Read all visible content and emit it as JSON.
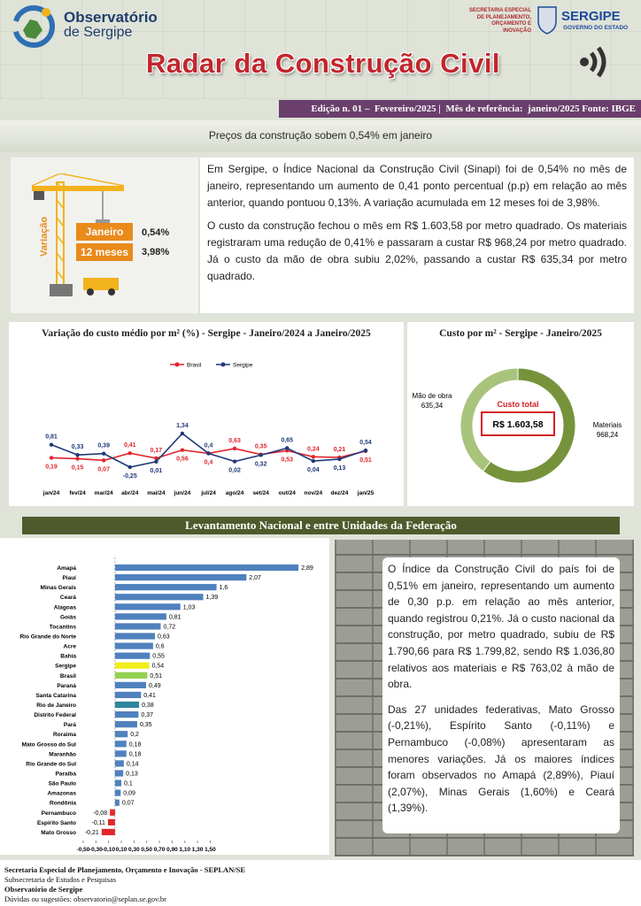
{
  "header": {
    "logo_title": "Observatório",
    "logo_subtitle": "de Sergipe",
    "agency_lines": [
      "SECRETARIA ESPECIAL",
      "DE PLANEJAMENTO,",
      "ORÇAMENTO E INOVAÇÃO"
    ],
    "government": "SERGIPE",
    "government_subtitle": "GOVERNO DO ESTADO",
    "title": "Radar da Construção Civil",
    "edition": "Edição n. 01 –  Fevereiro/2025 |  Mês de referência:  janeiro/2025 Fonte: IBGE"
  },
  "headline": "Preços da construção sobem 0,54% em janeiro",
  "summary": {
    "axis_label": "Variação",
    "rows": [
      {
        "label": "Janeiro",
        "value": "0,54%"
      },
      {
        "label": "12 meses",
        "value": "3,98%"
      }
    ]
  },
  "intro": [
    "Em Sergipe, o Índice Nacional da Construção Civil (Sinapi) foi de 0,54% no mês de janeiro, representando um aumento de 0,41 ponto percentual (p.p) em relação ao mês anterior, quando pontuou 0,13%. A variação acumulada em 12 meses foi de 3,98%.",
    "O custo da construção fechou o mês em R$ 1.603,58 por metro quadrado. Os materiais registraram uma redução de 0,41% e passaram a custar R$ 968,24 por metro quadrado. Já o custo da mão de obra subiu 2,02%, passando a custar R$ 635,34 por metro quadrado."
  ],
  "chart_data": [
    {
      "type": "line",
      "title": "Variação do custo médio por m² (%) - Sergipe - Janeiro/2024 a Janeiro/2025",
      "categories": [
        "jan/24",
        "fev/24",
        "mar/24",
        "abr/24",
        "mai/24",
        "jun/24",
        "jul/24",
        "ago/24",
        "set/24",
        "out/24",
        "nov/24",
        "dez/24",
        "jan/25"
      ],
      "series": [
        {
          "name": "Brasil",
          "color": "#e3242b",
          "values": [
            0.19,
            0.15,
            0.07,
            0.41,
            0.17,
            0.56,
            0.4,
            0.63,
            0.35,
            0.53,
            0.24,
            0.21,
            0.51
          ],
          "value_labels": [
            "0,19",
            "0,15",
            "0,07",
            "0,41",
            "0,17",
            "0,56",
            "0,4",
            "0,63",
            "0,35",
            "0,53",
            "0,24",
            "0,21",
            "0,51"
          ]
        },
        {
          "name": "Sergipe",
          "color": "#1f3a78",
          "values": [
            0.81,
            0.33,
            0.39,
            -0.25,
            0.01,
            1.34,
            0.4,
            0.02,
            0.32,
            0.65,
            0.04,
            0.13,
            0.54
          ],
          "value_labels": [
            "0,81",
            "0,33",
            "0,39",
            "-0,25",
            "0,01",
            "1,34",
            "0,4",
            "0,02",
            "0,32",
            "0,65",
            "0,04",
            "0,13",
            "0,54"
          ]
        }
      ]
    },
    {
      "type": "donut",
      "title": "Custo por m² - Sergipe - Janeiro/2025",
      "categories": [
        "Mão de obra",
        "Materiais"
      ],
      "values": [
        635.34,
        968.24
      ],
      "value_labels": [
        "635,34",
        "968,24"
      ],
      "colors": [
        "#a8c47c",
        "#76933c"
      ],
      "center_title": "Custo total",
      "center_value": "R$ 1.603,58"
    },
    {
      "type": "bar",
      "orientation": "horizontal",
      "categories": [
        "Amapá",
        "Piauí",
        "Minas Gerais",
        "Ceará",
        "Alagoas",
        "Goiás",
        "Tocantins",
        "Rio Grande do Norte",
        "Acre",
        "Bahia",
        "Sergipe",
        "Brasil",
        "Paraná",
        "Santa Catarina",
        "Rio de Janeiro",
        "Distrito Federal",
        "Pará",
        "Roraima",
        "Mato Grosso do Sul",
        "Maranhão",
        "Rio Grande do Sul",
        "Paraíba",
        "São Paulo",
        "Amazonas",
        "Rondônia",
        "Pernambuco",
        "Espírito Santo",
        "Mato Grosso"
      ],
      "values": [
        2.89,
        2.07,
        1.6,
        1.39,
        1.03,
        0.81,
        0.72,
        0.63,
        0.6,
        0.55,
        0.54,
        0.51,
        0.49,
        0.41,
        0.38,
        0.37,
        0.35,
        0.2,
        0.18,
        0.18,
        0.14,
        0.13,
        0.1,
        0.09,
        0.07,
        -0.08,
        -0.11,
        -0.21
      ],
      "value_labels": [
        "2,89",
        "2,07",
        "1,6",
        "1,39",
        "1,03",
        "0,81",
        "0,72",
        "0,63",
        "0,6",
        "0,55",
        "0,54",
        "0,51",
        "0,49",
        "0,41",
        "0,38",
        "0,37",
        "0,35",
        "0,2",
        "0,18",
        "0,18",
        "0,14",
        "0,13",
        "0,1",
        "0,09",
        "0,07",
        "-0,08",
        "-0,11",
        "-0,21"
      ],
      "colors": [
        "#4f81bd",
        "#4f81bd",
        "#4f81bd",
        "#4f81bd",
        "#4f81bd",
        "#4f81bd",
        "#4f81bd",
        "#4f81bd",
        "#4f81bd",
        "#4f81bd",
        "#f0ee1c",
        "#92d050",
        "#4f81bd",
        "#4f81bd",
        "#31859c",
        "#4f81bd",
        "#4f81bd",
        "#4f81bd",
        "#4f81bd",
        "#4f81bd",
        "#4f81bd",
        "#4f81bd",
        "#4f81bd",
        "#4f81bd",
        "#4f81bd",
        "#e02828",
        "#e02828",
        "#e02828"
      ],
      "xlim": [
        -0.5,
        3
      ],
      "xticks": [
        {
          "value": -0.5,
          "label": "-0,50"
        },
        {
          "value": -0.3,
          "label": "-0,30"
        },
        {
          "value": -0.1,
          "label": "-0,10"
        },
        {
          "value": 0.1,
          "label": "0,10"
        },
        {
          "value": 0.3,
          "label": "0,30"
        },
        {
          "value": 0.5,
          "label": "0,50"
        },
        {
          "value": 0.7,
          "label": "0,70"
        },
        {
          "value": 0.9,
          "label": "0,90"
        },
        {
          "value": 1.1,
          "label": "1,10"
        },
        {
          "value": 1.3,
          "label": "1,30"
        },
        {
          "value": 1.5,
          "label": "1,50"
        }
      ]
    }
  ],
  "section_title": "Levantamento Nacional e entre Unidades da Federação",
  "national": [
    "O Índice da Construção Civil do país foi de 0,51% em janeiro, representando um aumento de 0,30 p.p. em relação ao mês anterior, quando registrou 0,21%. Já o custo nacional da construção, por metro quadrado, subiu de R$ 1.790,66 para R$ 1.799,82, sendo R$ 1.036,80 relativos aos materiais e R$ 763,02 à mão de obra.",
    "Das 27 unidades federativas, Mato Grosso (-0,21%), Espírito Santo (-0,11%) e Pernambuco (-0,08%) apresentaram as menores variações.  Já os maiores índices foram observados no Amapá (2,89%), Piauí (2,07%), Minas Gerais (1,60%) e Ceará (1,39%)."
  ],
  "footer": [
    "Secretaria Especial de Planejamento, Orçamento e Inovação - SEPLAN/SE",
    "Subsecretaria de Estudos e Pesquisas",
    "Observatório de Sergipe",
    "Dúvidas ou sugestões: observatorio@seplan.se.gov.br"
  ]
}
